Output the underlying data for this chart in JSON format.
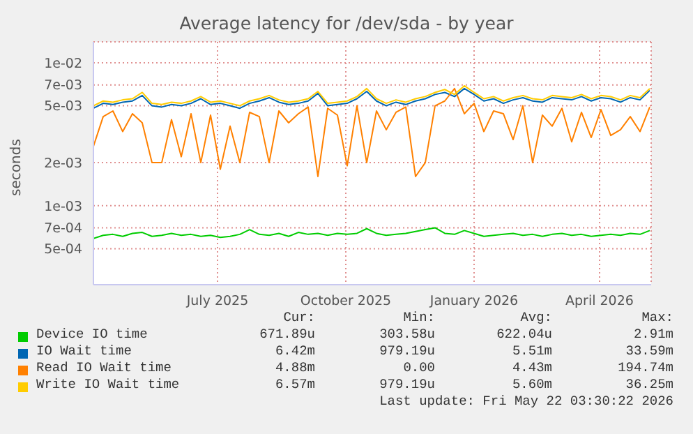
{
  "chart_data": {
    "type": "line",
    "title": "Average latency for /dev/sda - by year",
    "ylabel": "seconds",
    "log": true,
    "grid": true,
    "legend": "bottom",
    "xlim": [
      "2025-04-17",
      "2026-05-22"
    ],
    "xticks": [
      {
        "value": "2025-07-15",
        "label": "July 2025"
      },
      {
        "value": "2025-10-15",
        "label": "October 2025"
      },
      {
        "value": "2026-01-15",
        "label": "January 2026"
      },
      {
        "value": "2026-04-15",
        "label": "April 2026"
      }
    ],
    "ylim": [
      0.00028,
      0.014
    ],
    "yticks": [
      {
        "value": 0.0005,
        "label": "5e-04"
      },
      {
        "value": 0.0007,
        "label": "7e-04"
      },
      {
        "value": 0.001,
        "label": "1e-03"
      },
      {
        "value": 0.002,
        "label": "2e-03"
      },
      {
        "value": 0.005,
        "label": "5e-03"
      },
      {
        "value": 0.007,
        "label": "7e-03"
      },
      {
        "value": 0.01,
        "label": "1e-02"
      }
    ],
    "x": [
      "2025-04-17",
      "2025-04-24",
      "2025-05-01",
      "2025-05-08",
      "2025-05-15",
      "2025-05-22",
      "2025-05-29",
      "2025-06-05",
      "2025-06-12",
      "2025-06-19",
      "2025-06-26",
      "2025-07-03",
      "2025-07-10",
      "2025-07-17",
      "2025-07-24",
      "2025-07-31",
      "2025-08-07",
      "2025-08-14",
      "2025-08-21",
      "2025-08-28",
      "2025-09-04",
      "2025-09-11",
      "2025-09-18",
      "2025-09-25",
      "2025-10-02",
      "2025-10-09",
      "2025-10-16",
      "2025-10-23",
      "2025-10-30",
      "2025-11-06",
      "2025-11-13",
      "2025-11-20",
      "2025-11-27",
      "2025-12-04",
      "2025-12-11",
      "2025-12-18",
      "2025-12-25",
      "2026-01-01",
      "2026-01-08",
      "2026-01-15",
      "2026-01-22",
      "2026-01-29",
      "2026-02-05",
      "2026-02-12",
      "2026-02-19",
      "2026-02-26",
      "2026-03-05",
      "2026-03-12",
      "2026-03-19",
      "2026-03-26",
      "2026-04-02",
      "2026-04-09",
      "2026-04-16",
      "2026-04-23",
      "2026-04-30",
      "2026-05-07",
      "2026-05-14",
      "2026-05-21"
    ],
    "series": [
      {
        "name": "Device IO time",
        "color": "#00cc00",
        "values": [
          0.00059,
          0.00062,
          0.00063,
          0.00061,
          0.00064,
          0.00065,
          0.00061,
          0.00062,
          0.00064,
          0.00062,
          0.00063,
          0.00061,
          0.00062,
          0.0006,
          0.00061,
          0.00063,
          0.00068,
          0.00063,
          0.00062,
          0.00064,
          0.00061,
          0.00065,
          0.00063,
          0.00064,
          0.00062,
          0.00064,
          0.00063,
          0.00064,
          0.00069,
          0.00064,
          0.00062,
          0.00063,
          0.00064,
          0.00066,
          0.00068,
          0.0007,
          0.00064,
          0.00063,
          0.00067,
          0.00064,
          0.00061,
          0.00062,
          0.00063,
          0.00064,
          0.00062,
          0.00063,
          0.00061,
          0.00063,
          0.00064,
          0.00062,
          0.00063,
          0.00061,
          0.00062,
          0.00063,
          0.00062,
          0.00064,
          0.00063,
          0.00067
        ]
      },
      {
        "name": "IO Wait time",
        "color": "#0066b3",
        "values": [
          0.0048,
          0.0052,
          0.0051,
          0.0053,
          0.0054,
          0.0059,
          0.005,
          0.0049,
          0.0051,
          0.005,
          0.0052,
          0.0056,
          0.0051,
          0.0052,
          0.005,
          0.0048,
          0.0052,
          0.0054,
          0.0057,
          0.0053,
          0.0051,
          0.0052,
          0.0054,
          0.0061,
          0.005,
          0.0051,
          0.0052,
          0.0056,
          0.0063,
          0.0054,
          0.005,
          0.0053,
          0.0051,
          0.0054,
          0.0056,
          0.006,
          0.0062,
          0.0058,
          0.0066,
          0.006,
          0.0054,
          0.0056,
          0.0052,
          0.0055,
          0.0057,
          0.0054,
          0.0053,
          0.0057,
          0.0056,
          0.0055,
          0.0058,
          0.0054,
          0.0057,
          0.0056,
          0.0053,
          0.0057,
          0.0055,
          0.0064
        ]
      },
      {
        "name": "Read IO Wait time",
        "color": "#ff8000",
        "values": [
          0.0026,
          0.0042,
          0.0046,
          0.0033,
          0.0044,
          0.0038,
          0.002,
          0.002,
          0.004,
          0.0022,
          0.0044,
          0.002,
          0.0043,
          0.0018,
          0.0036,
          0.002,
          0.0045,
          0.0042,
          0.002,
          0.0046,
          0.0038,
          0.0044,
          0.0049,
          0.0016,
          0.0048,
          0.0043,
          0.0019,
          0.005,
          0.002,
          0.0046,
          0.0034,
          0.0045,
          0.0049,
          0.0016,
          0.002,
          0.005,
          0.0054,
          0.0066,
          0.0044,
          0.0052,
          0.0033,
          0.0046,
          0.0044,
          0.0029,
          0.005,
          0.002,
          0.0043,
          0.0036,
          0.0048,
          0.0028,
          0.0045,
          0.003,
          0.0047,
          0.0031,
          0.0034,
          0.0042,
          0.0033,
          0.0049
        ]
      },
      {
        "name": "Write IO Wait time",
        "color": "#ffcc00",
        "values": [
          0.005,
          0.0054,
          0.0053,
          0.0055,
          0.0056,
          0.0062,
          0.0052,
          0.0051,
          0.0053,
          0.0052,
          0.0054,
          0.0058,
          0.0053,
          0.0054,
          0.0052,
          0.005,
          0.0054,
          0.0056,
          0.0059,
          0.0055,
          0.0053,
          0.0054,
          0.0056,
          0.0063,
          0.0052,
          0.0053,
          0.0054,
          0.0058,
          0.0066,
          0.0056,
          0.0052,
          0.0055,
          0.0053,
          0.0056,
          0.0058,
          0.0062,
          0.0065,
          0.006,
          0.0069,
          0.0062,
          0.0056,
          0.0058,
          0.0054,
          0.0057,
          0.0059,
          0.0056,
          0.0055,
          0.0059,
          0.0058,
          0.0057,
          0.006,
          0.0056,
          0.0059,
          0.0058,
          0.0055,
          0.0059,
          0.0057,
          0.0066
        ]
      }
    ],
    "annotations": [
      "Cur:",
      "Min:",
      "Avg:",
      "Max:",
      "671.89u",
      "303.58u",
      "622.04u",
      "2.91m",
      "6.42m",
      "979.19u",
      "5.51m",
      "33.59m",
      "4.88m",
      "0.00",
      "4.43m",
      "194.74m",
      "6.57m",
      "979.19u",
      "5.60m",
      "36.25m",
      "Last update: Fri May 22 03:30:22 2026"
    ]
  }
}
